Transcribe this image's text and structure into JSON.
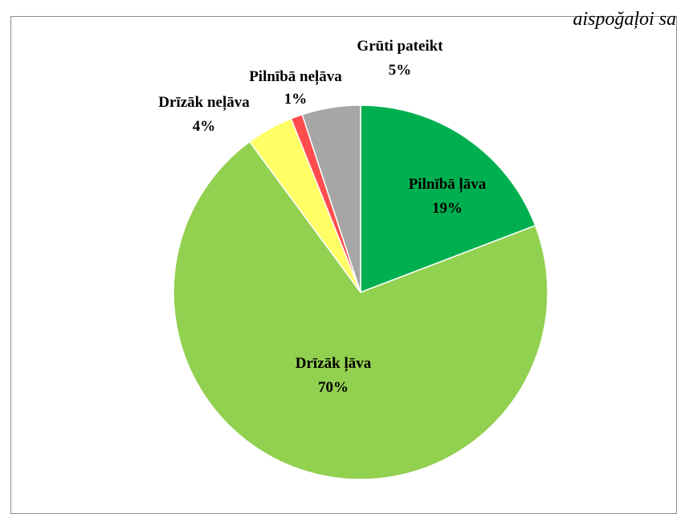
{
  "header_text": "aispoğaļoi sa",
  "chart_data": {
    "type": "pie",
    "title": "",
    "start_angle_deg": 0,
    "direction": "clockwise",
    "slices": [
      {
        "label": "Pilnībā ļāva",
        "value": 19,
        "value_label": "19%",
        "color": "#00b050"
      },
      {
        "label": "Drīzāk ļāva",
        "value": 70,
        "value_label": "70%",
        "color": "#92d050"
      },
      {
        "label": "Drīzāk neļāva",
        "value": 4,
        "value_label": "4%",
        "color": "#ffff66"
      },
      {
        "label": "Pilnībā neļāva",
        "value": 1,
        "value_label": "1%",
        "color": "#ff4d4d"
      },
      {
        "label": "Grūti pateikt",
        "value": 5,
        "value_label": "5%",
        "color": "#a6a6a6"
      }
    ]
  }
}
